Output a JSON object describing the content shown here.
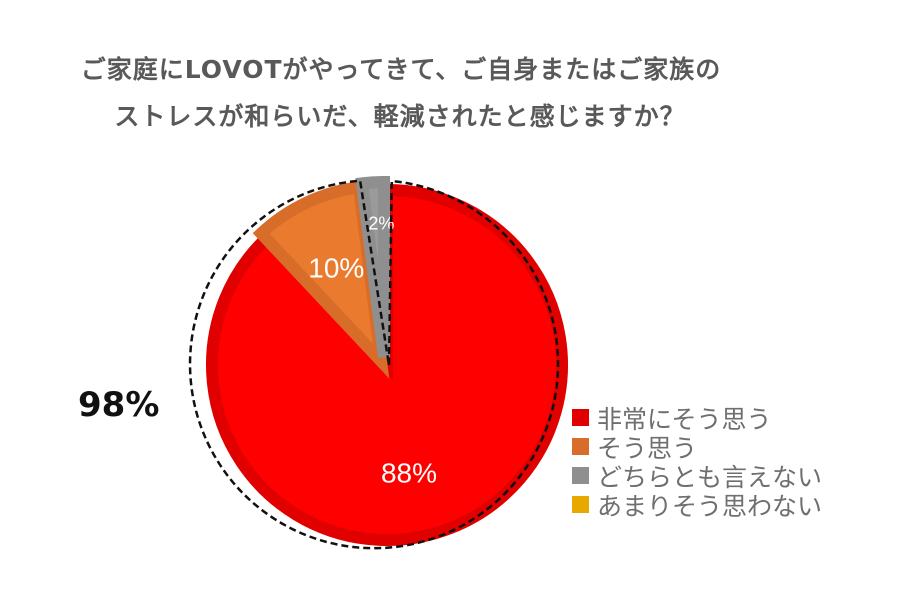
{
  "chart_data": {
    "type": "pie",
    "title": [
      "ご家庭にLOVOTがやってきて、ご自身またはご家族の",
      "ストレスが和らいだ、軽減されたと感じますか？"
    ],
    "categories": [
      "非常にそう思う",
      "そう思う",
      "どちらとも言えない",
      "あまりそう思わない"
    ],
    "values": [
      88,
      10,
      2,
      0
    ],
    "data_labels": [
      "88%",
      "10%",
      "2%",
      ""
    ],
    "colors": [
      "#ff0000",
      "#e97a2e",
      "#9a9a9a",
      "#e8a800"
    ],
    "annotation": "98%",
    "legend_position": "right"
  }
}
